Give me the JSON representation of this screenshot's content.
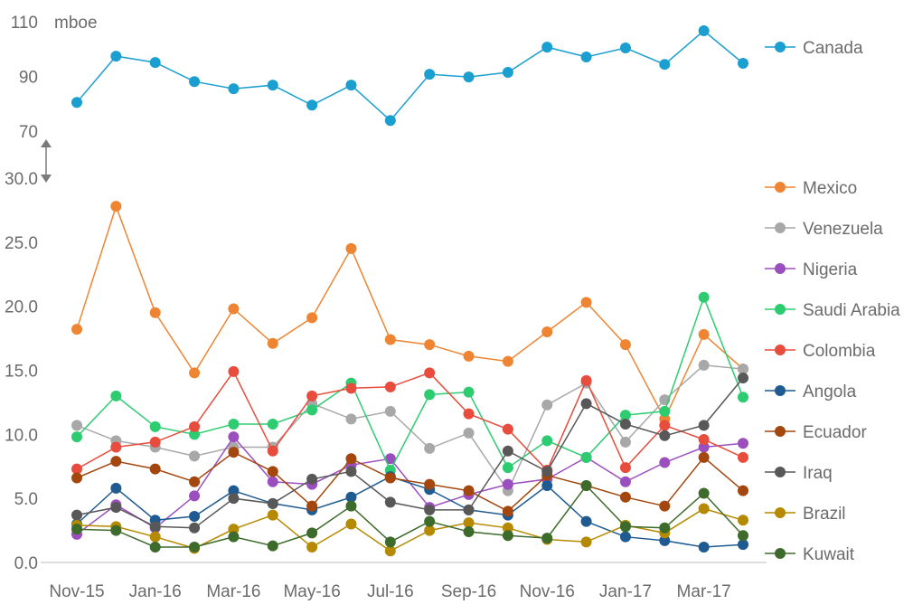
{
  "chart_data": {
    "type": "line",
    "unit_label": "mboe",
    "x": [
      "Nov-15",
      "Dec-15",
      "Jan-16",
      "Feb-16",
      "Mar-16",
      "Apr-16",
      "May-16",
      "Jun-16",
      "Jul-16",
      "Aug-16",
      "Sep-16",
      "Oct-16",
      "Nov-16",
      "Dec-16",
      "Jan-17",
      "Feb-17",
      "Mar-17",
      "Apr-17"
    ],
    "x_tick_labels": [
      "Nov-15",
      "Jan-16",
      "Mar-16",
      "May-16",
      "Jul-16",
      "Sep-16",
      "Nov-16",
      "Jan-17",
      "Mar-17"
    ],
    "upper_axis": {
      "ylim": [
        70,
        110
      ],
      "ticks": [
        "70",
        "90",
        "110"
      ]
    },
    "lower_axis": {
      "ylim": [
        0,
        30
      ],
      "ticks": [
        "0.0",
        "5.0",
        "10.0",
        "15.0",
        "20.0",
        "25.0",
        "30.0"
      ]
    },
    "axis_break": true,
    "legend_placement": "right",
    "series": [
      {
        "name": "Canada",
        "axis": "upper",
        "color": "#1b9fd0",
        "values": [
          80.5,
          97.4,
          95.1,
          88.1,
          85.5,
          86.8,
          79.5,
          86.8,
          73.9,
          90.8,
          89.8,
          91.5,
          100.7,
          97.1,
          100.4,
          94.4,
          106.7,
          94.8
        ]
      },
      {
        "name": "Mexico",
        "axis": "lower",
        "color": "#ef8532",
        "values": [
          18.2,
          27.8,
          19.5,
          14.8,
          19.8,
          17.1,
          19.1,
          24.5,
          17.4,
          17.0,
          16.1,
          15.7,
          18.0,
          20.3,
          17.0,
          11.2,
          17.8,
          15.1
        ]
      },
      {
        "name": "Venezuela",
        "axis": "lower",
        "color": "#a8a8a8",
        "values": [
          10.7,
          9.5,
          9.0,
          8.3,
          9.0,
          9.0,
          12.4,
          11.2,
          11.8,
          8.9,
          10.1,
          5.6,
          12.3,
          14.0,
          9.4,
          12.7,
          15.4,
          15.1
        ]
      },
      {
        "name": "Nigeria",
        "axis": "lower",
        "color": "#9b4fbf",
        "values": [
          2.2,
          4.5,
          2.7,
          5.2,
          9.8,
          6.3,
          6.1,
          7.6,
          8.1,
          4.3,
          5.3,
          6.1,
          6.5,
          8.2,
          6.3,
          7.8,
          9.0,
          9.3
        ]
      },
      {
        "name": "Saudi Arabia",
        "axis": "lower",
        "color": "#2ecc71",
        "values": [
          9.8,
          13.0,
          10.6,
          10.0,
          10.8,
          10.8,
          11.9,
          14.0,
          7.2,
          13.1,
          13.3,
          7.4,
          9.5,
          8.2,
          11.5,
          11.8,
          20.7,
          12.9
        ]
      },
      {
        "name": "Colombia",
        "axis": "lower",
        "color": "#e84c3d",
        "values": [
          7.3,
          9.0,
          9.4,
          10.6,
          14.9,
          8.7,
          13.0,
          13.6,
          13.7,
          14.8,
          11.6,
          10.4,
          7.2,
          14.2,
          7.4,
          10.7,
          9.6,
          8.2
        ]
      },
      {
        "name": "Angola",
        "axis": "lower",
        "color": "#1f5b90",
        "values": [
          3.0,
          5.8,
          3.3,
          3.6,
          5.6,
          4.6,
          4.1,
          5.1,
          6.7,
          5.7,
          4.1,
          3.7,
          6.0,
          3.2,
          2.0,
          1.7,
          1.2,
          1.4
        ]
      },
      {
        "name": "Ecuador",
        "axis": "lower",
        "color": "#a3470f",
        "values": [
          6.6,
          7.9,
          7.3,
          6.3,
          8.6,
          7.1,
          4.4,
          8.1,
          6.6,
          6.1,
          5.6,
          4.0,
          6.8,
          6.0,
          5.1,
          4.4,
          8.2,
          5.6
        ]
      },
      {
        "name": "Iraq",
        "axis": "lower",
        "color": "#585858",
        "values": [
          3.7,
          4.3,
          2.8,
          2.7,
          5.0,
          4.6,
          6.5,
          7.1,
          4.7,
          4.1,
          4.1,
          8.7,
          7.1,
          12.4,
          10.8,
          9.9,
          10.7,
          14.4
        ]
      },
      {
        "name": "Brazil",
        "axis": "lower",
        "color": "#b68a00",
        "values": [
          2.9,
          2.8,
          2.0,
          1.1,
          2.6,
          3.7,
          1.2,
          3.0,
          0.9,
          2.5,
          3.1,
          2.7,
          1.8,
          1.6,
          2.9,
          2.3,
          4.2,
          3.3
        ]
      },
      {
        "name": "Kuwait",
        "axis": "lower",
        "color": "#3d6b2b",
        "values": [
          2.6,
          2.5,
          1.2,
          1.2,
          2.0,
          1.3,
          2.3,
          4.4,
          1.6,
          3.2,
          2.4,
          2.1,
          1.9,
          6.0,
          2.8,
          2.7,
          5.4,
          2.1
        ]
      }
    ]
  }
}
